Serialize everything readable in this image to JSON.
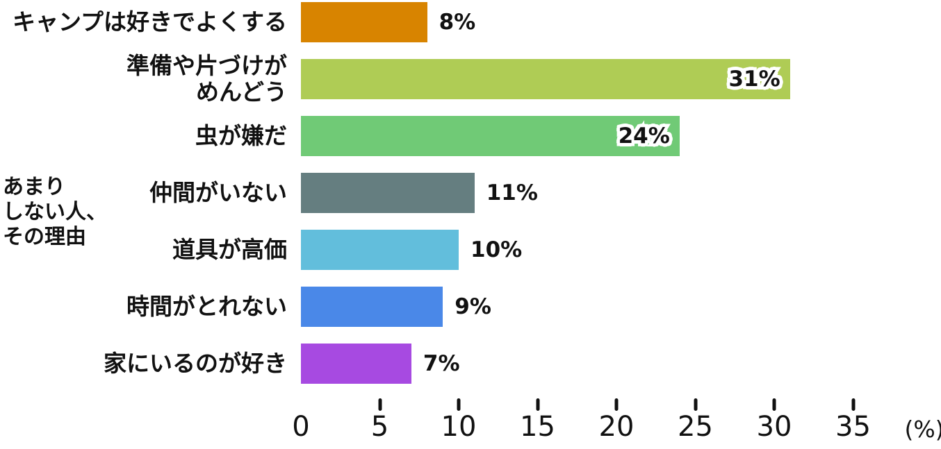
{
  "chart_data": {
    "type": "bar",
    "orientation": "horizontal",
    "group_label_lines": [
      "あまり",
      "しない人、",
      "その理由"
    ],
    "x_axis": {
      "ticks": [
        0,
        5,
        10,
        15,
        20,
        25,
        30,
        35
      ],
      "tick_marks": [
        5,
        10,
        15,
        20,
        25,
        30,
        35
      ],
      "unit": "(%)",
      "range": [
        0,
        37
      ]
    },
    "rows": [
      {
        "label_lines": [
          "キャンプは好きでよくする"
        ],
        "value": 8,
        "value_label": "8%",
        "color": "#D88400",
        "label_inside": false
      },
      {
        "label_lines": [
          "準備や片づけが",
          "めんどう"
        ],
        "value": 31,
        "value_label": "31%",
        "color": "#AFCC55",
        "label_inside": true
      },
      {
        "label_lines": [
          "虫が嫌だ"
        ],
        "value": 24,
        "value_label": "24%",
        "color": "#70CA76",
        "label_inside": true
      },
      {
        "label_lines": [
          "仲間がいない"
        ],
        "value": 11,
        "value_label": "11%",
        "color": "#657E80",
        "label_inside": false
      },
      {
        "label_lines": [
          "道具が高価"
        ],
        "value": 10,
        "value_label": "10%",
        "color": "#62BEDC",
        "label_inside": false
      },
      {
        "label_lines": [
          "時間がとれない"
        ],
        "value": 9,
        "value_label": "9%",
        "color": "#4A88E8",
        "label_inside": false
      },
      {
        "label_lines": [
          "家にいるのが好き"
        ],
        "value": 7,
        "value_label": "7%",
        "color": "#A74AE1",
        "label_inside": false
      }
    ],
    "colors": {
      "text": "#111111",
      "background": "#FFFFFF"
    },
    "grid": false,
    "legend": false
  }
}
